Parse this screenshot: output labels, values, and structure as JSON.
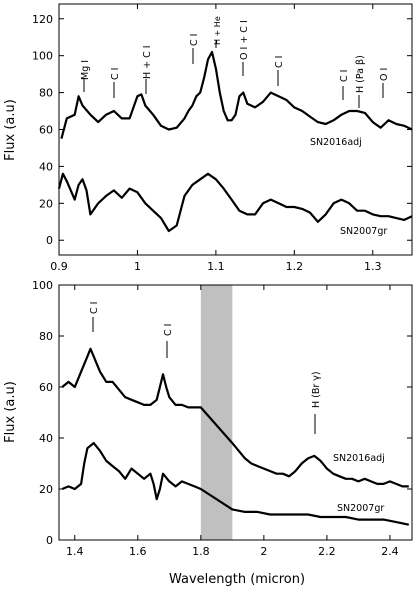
{
  "figure": {
    "ylabel_top": "Flux (a.u)",
    "ylabel_bottom": "Flux (a.u)",
    "xlabel": "Wavelength (micron)"
  },
  "chart_data": [
    {
      "type": "line",
      "title": "",
      "xlabel": "",
      "ylabel": "Flux (a.u)",
      "xlim": [
        0.9,
        1.35
      ],
      "ylim": [
        -8,
        128
      ],
      "xticks": [
        "0.9",
        "1",
        "1.1",
        "1.2",
        "1.3"
      ],
      "yticks": [
        "0",
        "20",
        "40",
        "60",
        "80",
        "100",
        "120"
      ],
      "series": [
        {
          "name": "SN2016adj",
          "x": [
            0.903,
            0.91,
            0.92,
            0.925,
            0.93,
            0.94,
            0.95,
            0.96,
            0.97,
            0.98,
            0.99,
            1.0,
            1.005,
            1.01,
            1.02,
            1.03,
            1.04,
            1.05,
            1.06,
            1.065,
            1.07,
            1.075,
            1.08,
            1.085,
            1.09,
            1.095,
            1.1,
            1.105,
            1.11,
            1.115,
            1.12,
            1.125,
            1.13,
            1.135,
            1.14,
            1.15,
            1.16,
            1.17,
            1.18,
            1.19,
            1.2,
            1.21,
            1.22,
            1.23,
            1.24,
            1.25,
            1.26,
            1.27,
            1.28,
            1.29,
            1.3,
            1.31,
            1.32,
            1.33,
            1.34,
            1.35
          ],
          "y": [
            55,
            66,
            68,
            78,
            73,
            68,
            64,
            68,
            70,
            66,
            66,
            78,
            79,
            73,
            68,
            62,
            60,
            61,
            66,
            70,
            73,
            78,
            80,
            88,
            98,
            102,
            93,
            80,
            70,
            65,
            65,
            68,
            78,
            80,
            74,
            72,
            75,
            80,
            78,
            76,
            72,
            70,
            67,
            64,
            63,
            65,
            68,
            70,
            70,
            69,
            64,
            61,
            65,
            63,
            62,
            60
          ]
        },
        {
          "name": "SN2007gr",
          "x": [
            0.9,
            0.905,
            0.91,
            0.92,
            0.925,
            0.93,
            0.935,
            0.94,
            0.95,
            0.96,
            0.97,
            0.98,
            0.99,
            1.0,
            1.01,
            1.02,
            1.03,
            1.04,
            1.05,
            1.06,
            1.07,
            1.08,
            1.09,
            1.1,
            1.11,
            1.12,
            1.13,
            1.14,
            1.15,
            1.16,
            1.17,
            1.18,
            1.19,
            1.2,
            1.21,
            1.22,
            1.23,
            1.24,
            1.25,
            1.26,
            1.27,
            1.28,
            1.29,
            1.3,
            1.31,
            1.32,
            1.33,
            1.34,
            1.35
          ],
          "y": [
            28,
            36,
            32,
            22,
            30,
            33,
            27,
            14,
            20,
            24,
            27,
            23,
            28,
            26,
            20,
            16,
            12,
            5,
            8,
            24,
            30,
            33,
            36,
            33,
            28,
            22,
            16,
            14,
            14,
            20,
            22,
            20,
            18,
            18,
            17,
            15,
            10,
            14,
            20,
            22,
            20,
            16,
            16,
            14,
            13,
            13,
            12,
            11,
            13
          ]
        }
      ],
      "annotations": [
        "Mg I",
        "C I",
        "H + C I",
        "C I",
        "H + He",
        "O I + C I",
        "C I",
        "C I",
        "H (Pa β)",
        "O I"
      ],
      "series_labels": [
        "SN2016adj",
        "SN2007gr"
      ]
    },
    {
      "type": "line",
      "title": "",
      "xlabel": "Wavelength (micron)",
      "ylabel": "Flux (a.u)",
      "xlim": [
        1.35,
        2.47
      ],
      "ylim": [
        0,
        100
      ],
      "xticks": [
        "1.4",
        "1.6",
        "1.8",
        "2",
        "2.2",
        "2.4"
      ],
      "yticks": [
        "0",
        "20",
        "40",
        "60",
        "80",
        "100"
      ],
      "shaded_region": [
        1.8,
        1.9
      ],
      "series": [
        {
          "name": "SN2016adj",
          "x": [
            1.36,
            1.38,
            1.4,
            1.42,
            1.44,
            1.45,
            1.46,
            1.48,
            1.5,
            1.52,
            1.54,
            1.56,
            1.58,
            1.6,
            1.62,
            1.64,
            1.66,
            1.67,
            1.68,
            1.69,
            1.7,
            1.72,
            1.74,
            1.76,
            1.78,
            1.8,
            1.9,
            1.92,
            1.94,
            1.96,
            1.98,
            2.0,
            2.02,
            2.04,
            2.06,
            2.08,
            2.1,
            2.12,
            2.14,
            2.16,
            2.18,
            2.2,
            2.22,
            2.24,
            2.26,
            2.28,
            2.3,
            2.32,
            2.34,
            2.36,
            2.38,
            2.4,
            2.42,
            2.44,
            2.46
          ],
          "y": [
            60,
            62,
            60,
            66,
            72,
            75,
            72,
            66,
            62,
            62,
            59,
            56,
            55,
            54,
            53,
            53,
            55,
            60,
            65,
            60,
            56,
            53,
            53,
            52,
            52,
            52,
            38,
            35,
            32,
            30,
            29,
            28,
            27,
            26,
            26,
            25,
            27,
            30,
            32,
            33,
            31,
            28,
            26,
            25,
            24,
            24,
            23,
            24,
            23,
            22,
            22,
            23,
            22,
            21,
            21
          ]
        },
        {
          "name": "SN2007gr",
          "x": [
            1.36,
            1.38,
            1.4,
            1.42,
            1.43,
            1.44,
            1.46,
            1.48,
            1.5,
            1.52,
            1.54,
            1.56,
            1.58,
            1.6,
            1.62,
            1.64,
            1.65,
            1.66,
            1.67,
            1.68,
            1.7,
            1.72,
            1.74,
            1.76,
            1.78,
            1.8,
            1.9,
            1.94,
            1.98,
            2.02,
            2.06,
            2.1,
            2.14,
            2.18,
            2.22,
            2.26,
            2.3,
            2.34,
            2.38,
            2.42,
            2.46
          ],
          "y": [
            20,
            21,
            20,
            22,
            30,
            36,
            38,
            35,
            31,
            29,
            27,
            24,
            28,
            26,
            24,
            26,
            22,
            16,
            20,
            26,
            23,
            21,
            23,
            22,
            21,
            20,
            12,
            11,
            11,
            10,
            10,
            10,
            10,
            9,
            9,
            9,
            8,
            8,
            8,
            7,
            6
          ]
        }
      ],
      "annotations": [
        "C I",
        "C I",
        "H (Br γ)"
      ],
      "series_labels": [
        "SN2016adj",
        "SN2007gr"
      ]
    }
  ]
}
